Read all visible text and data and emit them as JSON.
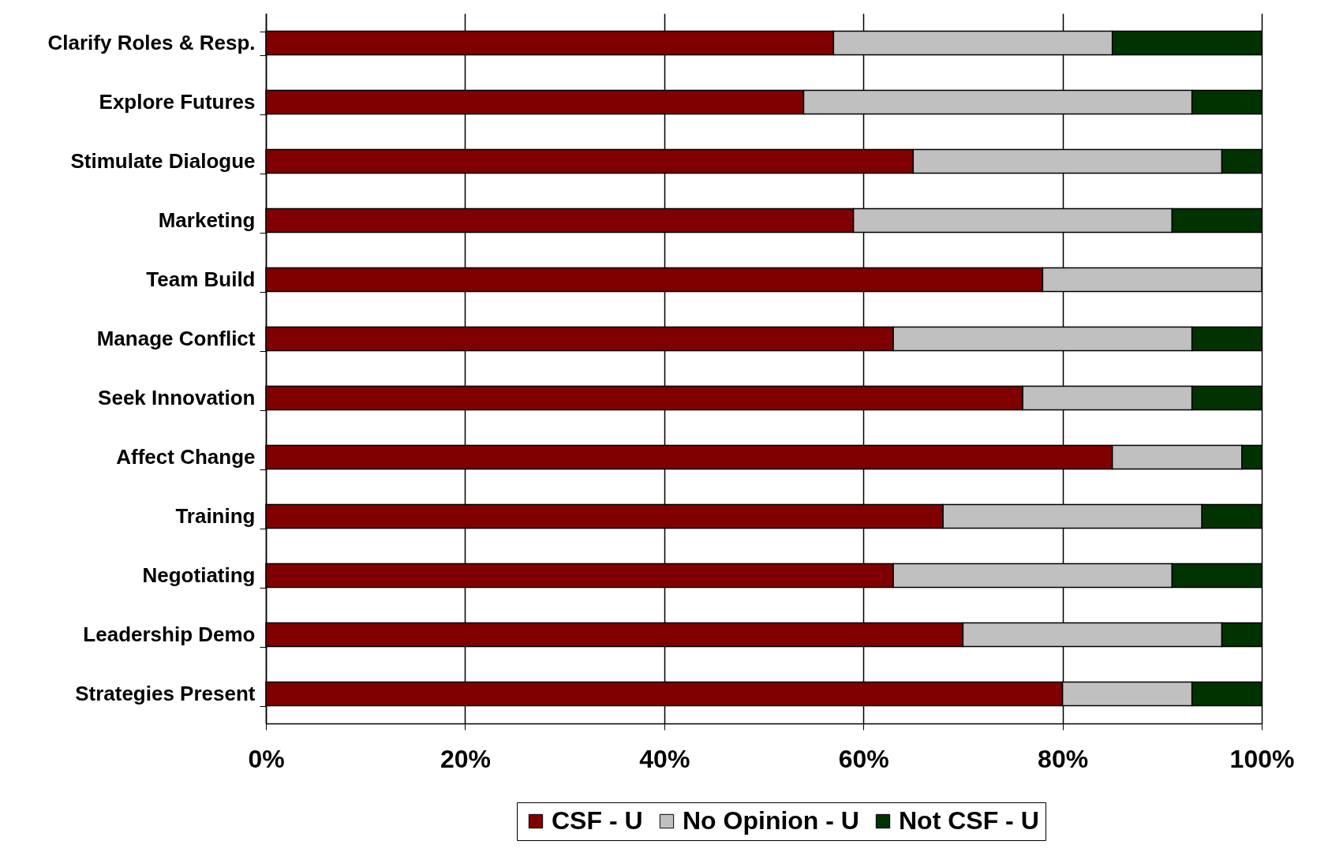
{
  "chart_data": {
    "type": "bar",
    "orientation": "horizontal",
    "stacked": true,
    "categories": [
      "Clarify Roles & Resp.",
      "Explore Futures",
      "Stimulate Dialogue",
      "Marketing",
      "Team Build",
      "Manage Conflict",
      "Seek Innovation",
      "Affect Change",
      "Training",
      "Negotiating",
      "Leadership Demo",
      "Strategies Present"
    ],
    "series": [
      {
        "name": "CSF - U",
        "color": "#800000",
        "values": [
          57,
          54,
          65,
          59,
          78,
          63,
          76,
          85,
          68,
          63,
          70,
          80
        ]
      },
      {
        "name": "No Opinion - U",
        "color": "#c0c0c0",
        "values": [
          28,
          39,
          31,
          32,
          22,
          30,
          17,
          13,
          26,
          28,
          26,
          13
        ]
      },
      {
        "name": "Not CSF - U",
        "color": "#003300",
        "values": [
          15,
          7,
          4,
          9,
          null,
          7,
          7,
          2,
          6,
          9,
          4,
          7
        ]
      }
    ],
    "xlim": [
      0,
      100
    ],
    "xticks": [
      {
        "value": 0,
        "label": "0%"
      },
      {
        "value": 20,
        "label": "20%"
      },
      {
        "value": 40,
        "label": "40%"
      },
      {
        "value": 60,
        "label": "60%"
      },
      {
        "value": 80,
        "label": "80%"
      },
      {
        "value": 100,
        "label": "100%"
      }
    ],
    "grid": "x",
    "legend": "bottom"
  }
}
